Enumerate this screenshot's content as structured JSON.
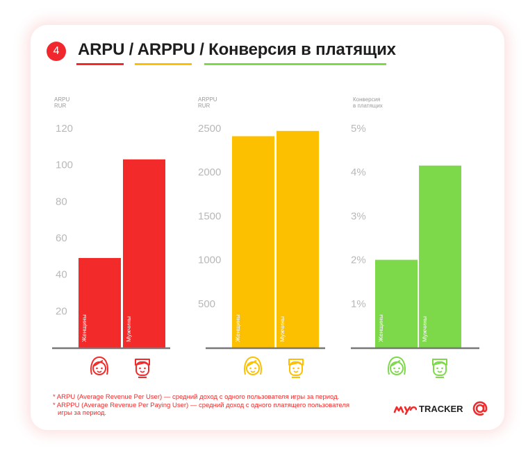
{
  "header": {
    "number": "4",
    "title": "ARPU / ARPPU / Конверсия в платящих"
  },
  "colors": {
    "red": "#f32a2a",
    "yellow": "#fcc000",
    "green": "#7dd94a",
    "axis": "#777777",
    "tick": "#b8b8b8",
    "axis_title": "#9a9a9a"
  },
  "chart_data": [
    {
      "type": "bar",
      "ylabel": "ARPU\nRUR",
      "categories": [
        "Женщины",
        "Мужчины"
      ],
      "values": [
        49,
        103
      ],
      "ylim": [
        0,
        120
      ],
      "ticks": [
        "20",
        "40",
        "60",
        "80",
        "100",
        "120"
      ],
      "tick_values": [
        20,
        40,
        60,
        80,
        100,
        120
      ],
      "color": "#f32a2a",
      "icon_color": "#f32a2a"
    },
    {
      "type": "bar",
      "ylabel": "ARPPU\nRUR",
      "categories": [
        "Женщины",
        "Мужчины"
      ],
      "values": [
        2410,
        2470
      ],
      "ylim": [
        0,
        2500
      ],
      "ticks": [
        "500",
        "1000",
        "1500",
        "2000",
        "2500"
      ],
      "tick_values": [
        500,
        1000,
        1500,
        2000,
        2500
      ],
      "color": "#fcc000",
      "icon_color": "#fcc000"
    },
    {
      "type": "bar",
      "ylabel": "Конверсия\nв платящих",
      "categories": [
        "Женщины",
        "Мужчины"
      ],
      "values": [
        2.0,
        4.15
      ],
      "ylim": [
        0,
        5
      ],
      "ticks": [
        "1%",
        "2%",
        "3%",
        "4%",
        "5%"
      ],
      "tick_values": [
        1,
        2,
        3,
        4,
        5
      ],
      "color": "#7dd94a",
      "icon_color": "#7dd94a"
    }
  ],
  "footnotes": [
    "* ARPU (Average Revenue Per User) — средний доход с одного пользователя игры за период.",
    "* ARPPU (Average Revenue Per Paying User) — средний доход с одного платящего пользователя",
    "игры за период."
  ],
  "logos": {
    "tracker": "TRACKER",
    "tracker_icon": "mytracker-logo-icon",
    "at_icon": "at-sign-logo-icon"
  }
}
